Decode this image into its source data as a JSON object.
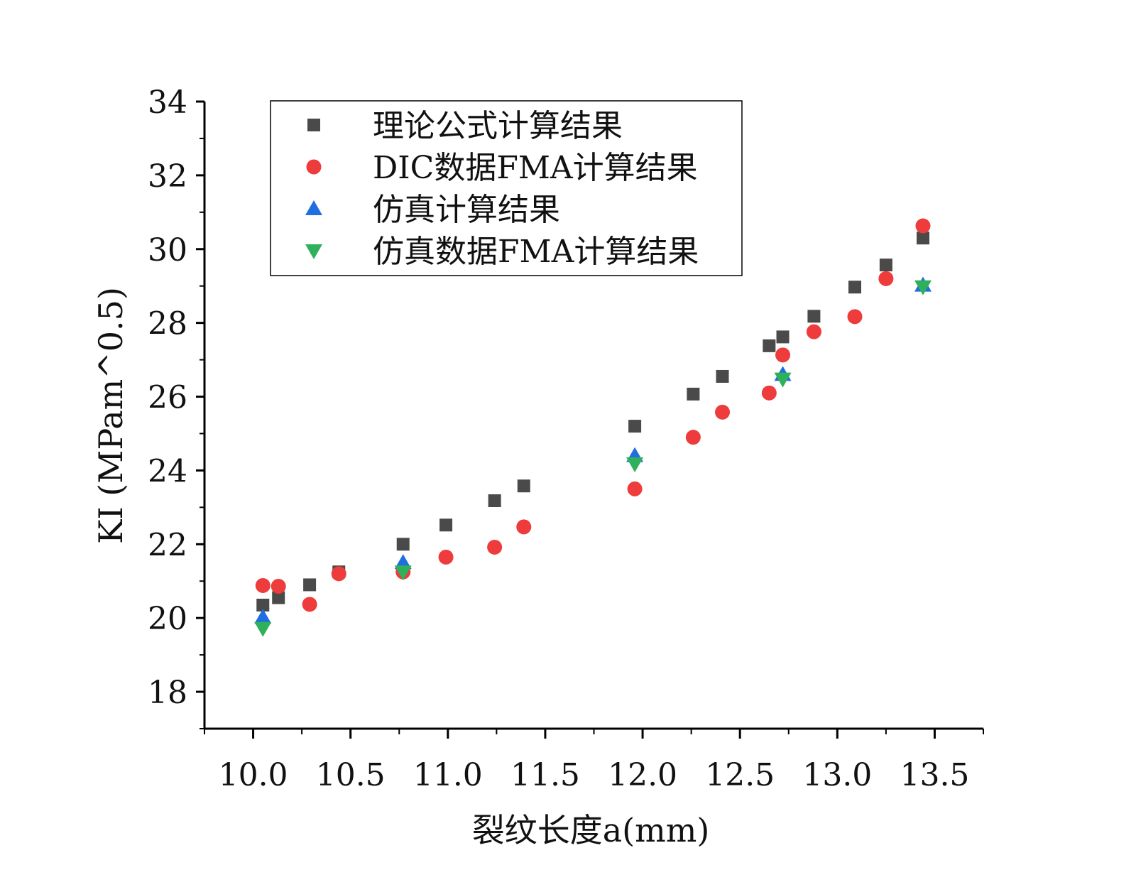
{
  "chart_data": {
    "type": "scatter",
    "xlabel": "裂纹长度a(mm)",
    "ylabel": "KI (MPam^0.5)",
    "xlim": [
      9.75,
      13.75
    ],
    "ylim": [
      17,
      34
    ],
    "x_ticks": [
      "10.0",
      "10.5",
      "11.0",
      "11.5",
      "12.0",
      "12.5",
      "13.0",
      "13.5"
    ],
    "x_tick_values": [
      10.0,
      10.5,
      11.0,
      11.5,
      12.0,
      12.5,
      13.0,
      13.5
    ],
    "y_ticks": [
      "18",
      "20",
      "22",
      "24",
      "26",
      "28",
      "30",
      "32",
      "34"
    ],
    "y_tick_values": [
      18,
      20,
      22,
      24,
      26,
      28,
      30,
      32,
      34
    ],
    "grid": false,
    "legend_position": "top-left",
    "series": [
      {
        "name": "理论公式计算结果",
        "marker": "square",
        "color": "#4a4a4a",
        "points": [
          [
            10.05,
            20.35
          ],
          [
            10.13,
            20.55
          ],
          [
            10.29,
            20.9
          ],
          [
            10.44,
            21.25
          ],
          [
            10.77,
            22.0
          ],
          [
            10.99,
            22.52
          ],
          [
            11.24,
            23.18
          ],
          [
            11.39,
            23.58
          ],
          [
            11.96,
            25.2
          ],
          [
            12.26,
            26.07
          ],
          [
            12.41,
            26.55
          ],
          [
            12.65,
            27.38
          ],
          [
            12.72,
            27.62
          ],
          [
            12.88,
            28.18
          ],
          [
            13.09,
            28.97
          ],
          [
            13.25,
            29.57
          ],
          [
            13.44,
            30.3
          ]
        ]
      },
      {
        "name": "DIC数据FMA计算结果",
        "marker": "circle",
        "color": "#ee3b3b",
        "points": [
          [
            10.05,
            20.88
          ],
          [
            10.13,
            20.86
          ],
          [
            10.29,
            20.37
          ],
          [
            10.44,
            21.2
          ],
          [
            10.77,
            21.25
          ],
          [
            10.99,
            21.65
          ],
          [
            11.24,
            21.92
          ],
          [
            11.39,
            22.47
          ],
          [
            11.96,
            23.5
          ],
          [
            12.26,
            24.9
          ],
          [
            12.41,
            25.58
          ],
          [
            12.65,
            26.1
          ],
          [
            12.72,
            27.13
          ],
          [
            12.88,
            27.76
          ],
          [
            13.09,
            28.17
          ],
          [
            13.25,
            29.2
          ],
          [
            13.44,
            30.63
          ]
        ]
      },
      {
        "name": "仿真计算结果",
        "marker": "triangle-up",
        "color": "#1f6fe0",
        "points": [
          [
            10.05,
            20.02
          ],
          [
            10.77,
            21.5
          ],
          [
            11.96,
            24.4
          ],
          [
            12.72,
            26.6
          ],
          [
            13.44,
            29.02
          ]
        ]
      },
      {
        "name": "仿真数据FMA计算结果",
        "marker": "triangle-down",
        "color": "#2fb05a",
        "points": [
          [
            10.05,
            19.72
          ],
          [
            10.77,
            21.25
          ],
          [
            11.96,
            24.18
          ],
          [
            12.72,
            26.48
          ],
          [
            13.44,
            28.98
          ]
        ]
      }
    ]
  }
}
